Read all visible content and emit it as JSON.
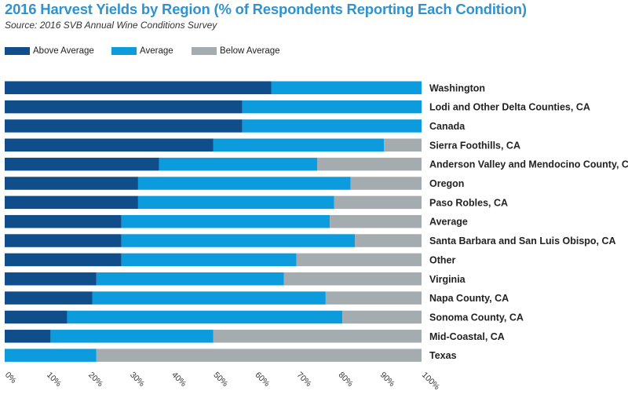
{
  "title": "2016 Harvest Yields by Region (% of Respondents Reporting Each Condition)",
  "source": "Source: 2016 SVB Annual Wine Conditions Survey",
  "colors": {
    "above": "#0f4e8a",
    "average": "#0c9bdc",
    "below": "#a4acaf",
    "title": "#2f93cf"
  },
  "legend": [
    {
      "label": "Above Average",
      "color_key": "above"
    },
    {
      "label": "Average",
      "color_key": "average"
    },
    {
      "label": "Below Average",
      "color_key": "below"
    }
  ],
  "chart_data": {
    "type": "bar",
    "orientation": "horizontal",
    "stacked": true,
    "title": "2016 Harvest Yields by Region (% of Respondents Reporting Each Condition)",
    "xlabel": "",
    "ylabel": "",
    "xlim": [
      0,
      100
    ],
    "xticks": [
      "0%",
      "10%",
      "20%",
      "30%",
      "40%",
      "50%",
      "60%",
      "70%",
      "80%",
      "90%",
      "100%"
    ],
    "grid": false,
    "legend_position": "top-left",
    "categories": [
      "Washington",
      "Lodi and Other Delta Counties, CA",
      "Canada",
      "Sierra Foothills, CA",
      "Anderson Valley and Mendocino County, CA",
      "Oregon",
      "Paso Robles, CA",
      "Average",
      "Santa Barbara and San Luis Obispo, CA",
      "Other",
      "Virginia",
      "Napa County, CA",
      "Sonoma County, CA",
      "Mid-Coastal, CA",
      "Texas"
    ],
    "series": [
      {
        "name": "Above Average",
        "color_key": "above",
        "values": [
          64,
          57,
          57,
          50,
          37,
          32,
          32,
          28,
          28,
          28,
          22,
          21,
          15,
          11,
          0
        ]
      },
      {
        "name": "Average",
        "color_key": "average",
        "values": [
          36,
          43,
          43,
          41,
          38,
          51,
          47,
          50,
          56,
          42,
          45,
          56,
          66,
          39,
          22
        ]
      },
      {
        "name": "Below Average",
        "color_key": "below",
        "values": [
          0,
          0,
          0,
          9,
          25,
          17,
          21,
          22,
          16,
          30,
          33,
          23,
          19,
          50,
          78
        ]
      }
    ]
  }
}
